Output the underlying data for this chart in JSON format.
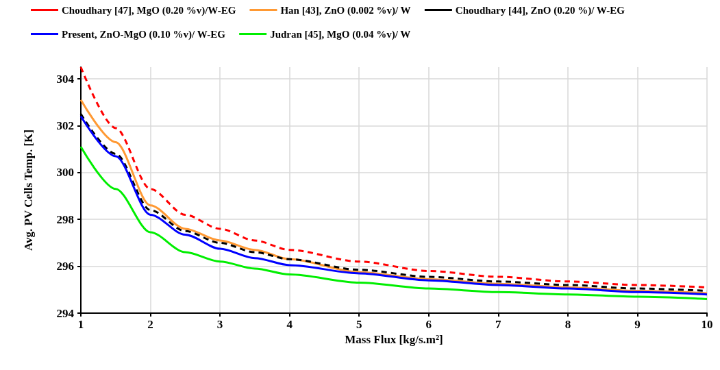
{
  "chart_data": {
    "type": "line",
    "xlabel": "Mass Flux [kg/s.m²]",
    "ylabel": "Avg. PV Cells Temp. [K]",
    "x": [
      1,
      1.5,
      2,
      2.5,
      3,
      3.5,
      4,
      5,
      6,
      7,
      8,
      9,
      10
    ],
    "series": [
      {
        "name": "Choudhary [47], MgO (0.20 %v)/W-EG",
        "color": "#ff0000",
        "line_style": "dashed",
        "values": [
          304.5,
          301.9,
          299.3,
          298.2,
          297.6,
          297.1,
          296.7,
          296.2,
          295.8,
          295.55,
          295.35,
          295.2,
          295.1
        ]
      },
      {
        "name": "Han [43], ZnO (0.002 %v)/ W",
        "color": "#ff9933",
        "line_style": "solid",
        "values": [
          303.1,
          301.3,
          298.6,
          297.6,
          297.1,
          296.7,
          296.3,
          295.75,
          295.45,
          295.25,
          295.1,
          294.95,
          294.85
        ]
      },
      {
        "name": "Choudhary [44], ZnO (0.20 %)/ W-EG",
        "color": "#000000",
        "line_style": "dashed",
        "values": [
          302.5,
          300.8,
          298.4,
          297.5,
          297.0,
          296.6,
          296.3,
          295.85,
          295.55,
          295.35,
          295.2,
          295.05,
          294.95
        ]
      },
      {
        "name": "Present, ZnO-MgO (0.10 %v)/ W-EG",
        "color": "#0000ff",
        "line_style": "solid",
        "values": [
          302.4,
          300.7,
          298.2,
          297.35,
          296.75,
          296.35,
          296.05,
          295.7,
          295.4,
          295.2,
          295.05,
          294.9,
          294.8
        ]
      },
      {
        "name": "Judran [45], MgO (0.04 %v)/ W",
        "color": "#00ee00",
        "line_style": "solid",
        "values": [
          301.1,
          299.3,
          297.45,
          296.6,
          296.2,
          295.9,
          295.65,
          295.3,
          295.05,
          294.9,
          294.8,
          294.7,
          294.6
        ]
      }
    ],
    "xlim": [
      1,
      10
    ],
    "xticks": [
      1,
      2,
      3,
      4,
      5,
      6,
      7,
      8,
      9,
      10
    ],
    "ylim": [
      294,
      304.5
    ],
    "yticks": [
      294,
      296,
      298,
      300,
      302,
      304
    ],
    "grid": true,
    "legend": "top",
    "marker": "none"
  }
}
